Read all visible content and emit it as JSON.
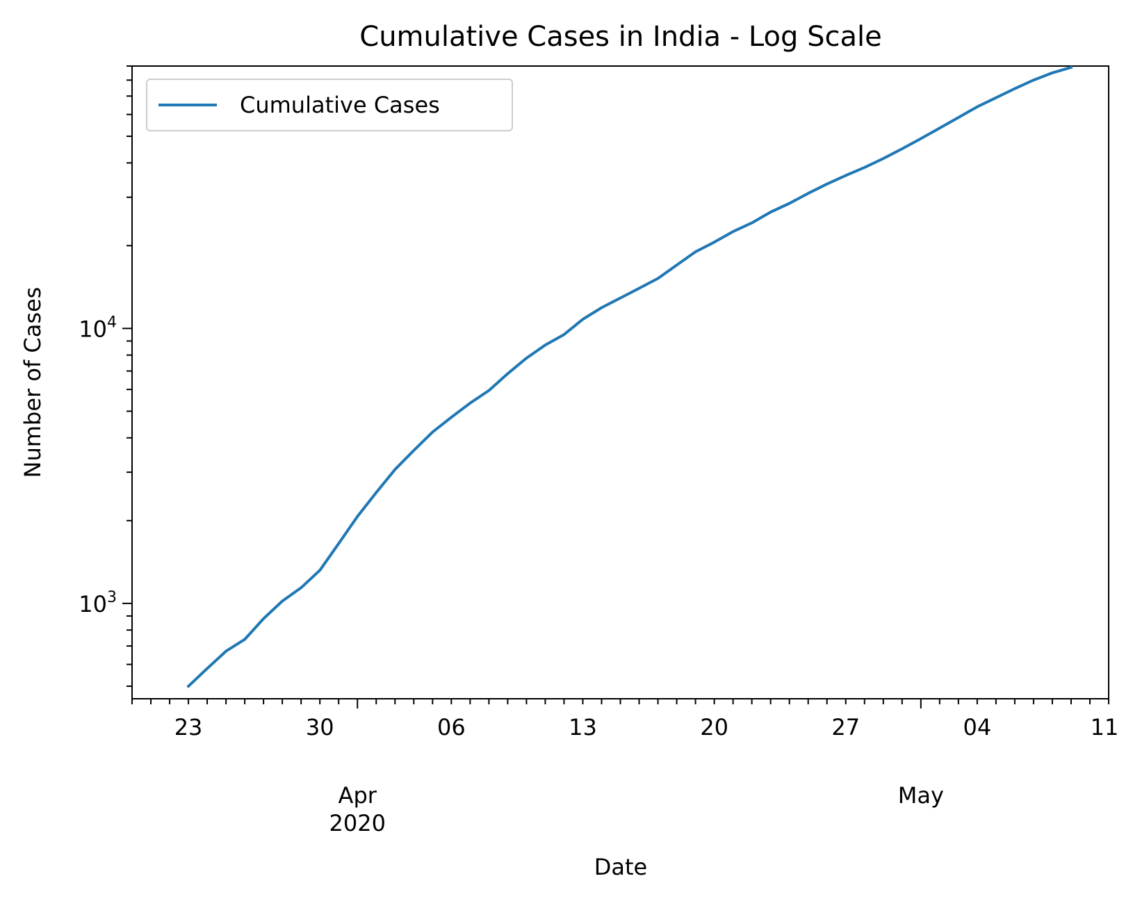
{
  "chart_data": {
    "type": "line",
    "title": "Cumulative Cases in India - Log Scale",
    "xlabel": "Date",
    "ylabel": "Number of Cases",
    "yscale": "log",
    "ylim": [
      450,
      90000
    ],
    "xlim": [
      "2020-03-20",
      "2020-05-11"
    ],
    "grid": false,
    "legend": {
      "position": "top-left",
      "entries": [
        "Cumulative Cases"
      ]
    },
    "x_ticks": [
      {
        "date": "2020-03-23",
        "label": "23"
      },
      {
        "date": "2020-03-30",
        "label": "30"
      },
      {
        "date": "2020-04-06",
        "label": "06"
      },
      {
        "date": "2020-04-13",
        "label": "13"
      },
      {
        "date": "2020-04-20",
        "label": "20"
      },
      {
        "date": "2020-04-27",
        "label": "27"
      },
      {
        "date": "2020-05-04",
        "label": "04"
      },
      {
        "date": "2020-05-11",
        "label": "11"
      }
    ],
    "x_month_labels": [
      {
        "date": "2020-04-01",
        "label": "Apr",
        "sublabel": "2020"
      },
      {
        "date": "2020-05-01",
        "label": "May",
        "sublabel": ""
      }
    ],
    "y_ticks": [
      {
        "value": 1000,
        "base": "10",
        "exp": "3"
      },
      {
        "value": 10000,
        "base": "10",
        "exp": "4"
      }
    ],
    "colors": {
      "series": "#1f77b4"
    },
    "series": [
      {
        "name": "Cumulative Cases",
        "x": [
          "2020-03-23",
          "2020-03-24",
          "2020-03-25",
          "2020-03-26",
          "2020-03-27",
          "2020-03-28",
          "2020-03-29",
          "2020-03-30",
          "2020-03-31",
          "2020-04-01",
          "2020-04-02",
          "2020-04-03",
          "2020-04-04",
          "2020-04-05",
          "2020-04-06",
          "2020-04-07",
          "2020-04-08",
          "2020-04-09",
          "2020-04-10",
          "2020-04-11",
          "2020-04-12",
          "2020-04-13",
          "2020-04-14",
          "2020-04-15",
          "2020-04-16",
          "2020-04-17",
          "2020-04-18",
          "2020-04-19",
          "2020-04-20",
          "2020-04-21",
          "2020-04-22",
          "2020-04-23",
          "2020-04-24",
          "2020-04-25",
          "2020-04-26",
          "2020-04-27",
          "2020-04-28",
          "2020-04-29",
          "2020-04-30",
          "2020-05-01",
          "2020-05-02",
          "2020-05-03",
          "2020-05-04",
          "2020-05-05",
          "2020-05-06",
          "2020-05-07",
          "2020-05-08",
          "2020-05-09"
        ],
        "values": [
          500,
          580,
          670,
          740,
          880,
          1020,
          1140,
          1320,
          1650,
          2070,
          2530,
          3070,
          3600,
          4200,
          4750,
          5350,
          5950,
          6850,
          7800,
          8700,
          9500,
          10800,
          11900,
          12900,
          14000,
          15200,
          17000,
          19000,
          20600,
          22500,
          24200,
          26500,
          28500,
          31000,
          33500,
          36000,
          38500,
          41500,
          45000,
          49000,
          53500,
          58500,
          64000,
          69000,
          74500,
          80000,
          85000,
          89000
        ]
      }
    ]
  }
}
